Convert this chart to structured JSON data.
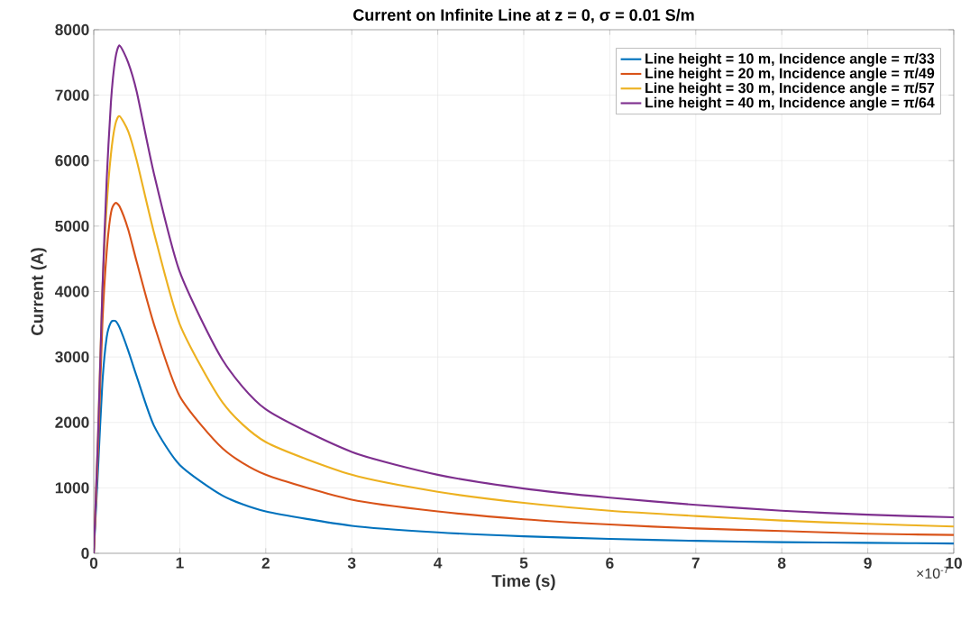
{
  "chart_data": {
    "type": "line",
    "title": "Current on Infinite Line at z = 0, σ = 0.01 S/m",
    "xlabel": "Time (s)",
    "ylabel": "Current (A)",
    "annotations": [
      "×10$^{-7}$"
    ],
    "x": [
      0,
      0.05,
      0.1,
      0.15,
      0.2,
      0.25,
      0.3,
      0.4,
      0.5,
      0.7,
      1,
      1.5,
      2,
      3,
      4,
      5,
      6,
      7,
      8,
      9,
      10
    ],
    "series": [
      {
        "name": "Line height = 10 m, Incidence angle = π/33",
        "color": "#0072bd",
        "values": [
          0,
          1300,
          2600,
          3300,
          3530,
          3550,
          3450,
          3100,
          2700,
          1950,
          1350,
          880,
          640,
          420,
          320,
          260,
          220,
          190,
          170,
          160,
          150
        ]
      },
      {
        "name": "Line height = 20 m, Incidence angle = π/49",
        "color": "#d95319",
        "values": [
          0,
          1600,
          3500,
          4600,
          5200,
          5350,
          5300,
          4950,
          4450,
          3500,
          2400,
          1600,
          1200,
          820,
          640,
          520,
          440,
          380,
          340,
          300,
          280
        ]
      },
      {
        "name": "Line height = 30 m, Incidence angle = π/57",
        "color": "#edb120",
        "values": [
          0,
          1800,
          4000,
          5300,
          6100,
          6550,
          6680,
          6450,
          6000,
          4900,
          3500,
          2300,
          1700,
          1200,
          940,
          770,
          650,
          570,
          500,
          450,
          410
        ]
      },
      {
        "name": "Line height = 40 m, Incidence angle = π/64",
        "color": "#7e2f8e",
        "values": [
          0,
          1800,
          4000,
          5700,
          6900,
          7550,
          7760,
          7500,
          7050,
          5800,
          4300,
          2950,
          2200,
          1550,
          1200,
          990,
          850,
          740,
          650,
          590,
          550
        ]
      }
    ],
    "xlim": [
      0,
      10
    ],
    "ylim": [
      0,
      8000
    ],
    "xticks": [
      0,
      1,
      2,
      3,
      4,
      5,
      6,
      7,
      8,
      9,
      10
    ],
    "yticks": [
      0,
      1000,
      2000,
      3000,
      4000,
      5000,
      6000,
      7000,
      8000
    ],
    "grid": true,
    "legend": "top right"
  }
}
